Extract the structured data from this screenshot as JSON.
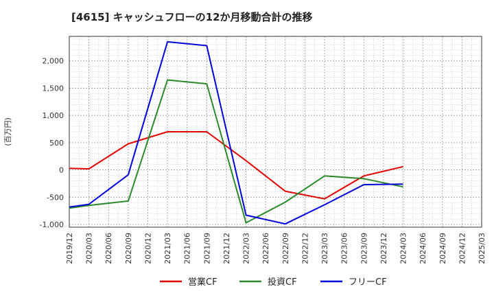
{
  "chart_data": {
    "type": "line",
    "title": "[4615]  キャッシュフローの12か月移動合計の推移",
    "ylabel": "(百万円)",
    "xlabel": "",
    "ylim": [
      -1050,
      2450
    ],
    "yticks": [
      -1000,
      -500,
      0,
      500,
      1000,
      1500,
      2000
    ],
    "ytick_labels": [
      "-1,000",
      "-500",
      "0",
      "500",
      "1,000",
      "1,500",
      "2,000"
    ],
    "x_categories": [
      "2019/12",
      "2020/03",
      "2020/06",
      "2020/09",
      "2020/12",
      "2021/03",
      "2021/06",
      "2021/09",
      "2021/12",
      "2022/03",
      "2022/06",
      "2022/09",
      "2022/12",
      "2023/03",
      "2023/06",
      "2023/09",
      "2023/12",
      "2024/03",
      "2024/06",
      "2024/09",
      "2024/12",
      "2025/03"
    ],
    "grid": true,
    "legend_position": "bottom",
    "series": [
      {
        "name": "営業CF",
        "color": "#e60000",
        "points": [
          [
            "2019/12",
            30
          ],
          [
            "2020/03",
            20
          ],
          [
            "2020/09",
            480
          ],
          [
            "2021/03",
            700
          ],
          [
            "2021/09",
            700
          ],
          [
            "2022/03",
            170
          ],
          [
            "2022/09",
            -390
          ],
          [
            "2023/03",
            -530
          ],
          [
            "2023/09",
            -110
          ],
          [
            "2024/03",
            60
          ]
        ]
      },
      {
        "name": "投資CF",
        "color": "#2a8a2a",
        "points": [
          [
            "2019/12",
            -700
          ],
          [
            "2020/03",
            -650
          ],
          [
            "2020/09",
            -570
          ],
          [
            "2021/03",
            1650
          ],
          [
            "2021/09",
            1580
          ],
          [
            "2022/03",
            -970
          ],
          [
            "2022/09",
            -590
          ],
          [
            "2023/03",
            -110
          ],
          [
            "2023/09",
            -160
          ],
          [
            "2024/03",
            -310
          ]
        ]
      },
      {
        "name": "フリーCF",
        "color": "#0000dd",
        "points": [
          [
            "2019/12",
            -680
          ],
          [
            "2020/03",
            -630
          ],
          [
            "2020/09",
            -90
          ],
          [
            "2021/03",
            2350
          ],
          [
            "2021/09",
            2280
          ],
          [
            "2022/03",
            -830
          ],
          [
            "2022/09",
            -990
          ],
          [
            "2023/03",
            -640
          ],
          [
            "2023/09",
            -270
          ],
          [
            "2024/03",
            -260
          ]
        ]
      }
    ]
  }
}
